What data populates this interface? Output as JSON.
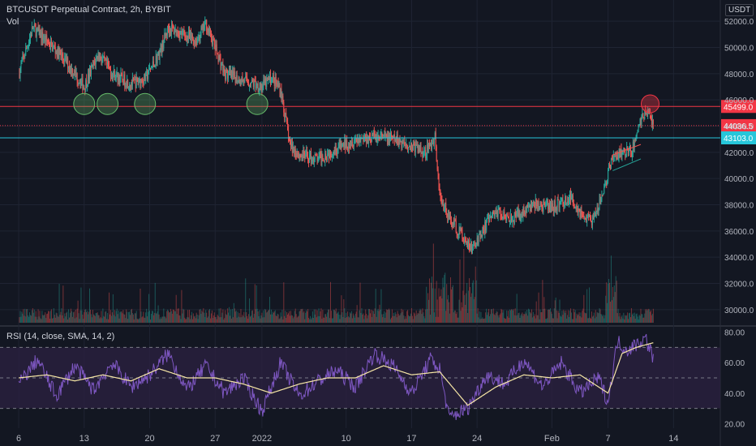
{
  "header": {
    "symbol_line": "BTCUSDT Perpetual Contract, 2h, BYBIT",
    "vol_label": "Vol",
    "currency": "USDT"
  },
  "rsi_legend": "RSI (14, close, SMA, 14, 2)",
  "price_labels": {
    "resistance": "45499.0",
    "last": "44036.5",
    "support": "43103.0"
  },
  "colors": {
    "background": "#131722",
    "up": "#26a69a",
    "down": "#ef5350",
    "resistance_line": "#f23645",
    "support_line": "#26c6da",
    "rsi_line": "#7e57c2",
    "rsi_sma": "#f7e7a6",
    "rsi_band": "#2a2140",
    "highlight_circle_green": "#66bb6a",
    "highlight_circle_red": "#f23645",
    "grid": "#1f2433"
  },
  "chart_data": [
    {
      "type": "candlestick",
      "title": "BTCUSDT Perpetual Contract, 2h, BYBIT",
      "y_axis": {
        "ticks": [
          30000,
          32000,
          34000,
          36000,
          38000,
          40000,
          42000,
          44000,
          46000,
          48000,
          50000,
          52000
        ],
        "tick_labels": [
          "30000.0",
          "32000.0",
          "34000.0",
          "36000.0",
          "38000.0",
          "40000.0",
          "42000.0",
          "44000.0",
          "46000.0",
          "48000.0",
          "50000.0",
          "52000.0"
        ],
        "range": [
          29000,
          53000
        ]
      },
      "x_axis": {
        "ticks": [
          "6",
          "13",
          "20",
          "27",
          "2022",
          "10",
          "17",
          "24",
          "Feb",
          "7",
          "14"
        ],
        "tick_days": [
          0,
          7,
          14,
          21,
          26,
          35,
          42,
          49,
          57,
          63,
          70
        ],
        "range_days": [
          -2,
          75
        ]
      },
      "horizontal_levels": [
        {
          "price": 45499.0,
          "label": "45499.0",
          "color": "#f23645"
        },
        {
          "price": 44036.5,
          "label": "44036.5",
          "color": "#f23645",
          "style": "dotted"
        },
        {
          "price": 43103.0,
          "label": "43103.0",
          "color": "#26c6da"
        }
      ],
      "price_path": [
        [
          0,
          48000
        ],
        [
          1.5,
          51500
        ],
        [
          3,
          50500
        ],
        [
          5,
          49000
        ],
        [
          7,
          47000
        ],
        [
          8.5,
          49500
        ],
        [
          10,
          48000
        ],
        [
          12,
          47200
        ],
        [
          13.5,
          47600
        ],
        [
          15,
          49500
        ],
        [
          16,
          51500
        ],
        [
          17.5,
          51000
        ],
        [
          19,
          50500
        ],
        [
          20,
          51800
        ],
        [
          21,
          50000
        ],
        [
          22,
          48000
        ],
        [
          24,
          47500
        ],
        [
          26,
          47000
        ],
        [
          27,
          47700
        ],
        [
          28,
          46800
        ],
        [
          29,
          42500
        ],
        [
          30,
          41800
        ],
        [
          32,
          41500
        ],
        [
          34,
          42300
        ],
        [
          36,
          43000
        ],
        [
          38,
          43200
        ],
        [
          40,
          43000
        ],
        [
          42,
          42500
        ],
        [
          43.5,
          42000
        ],
        [
          44.5,
          43200
        ],
        [
          45,
          38500
        ],
        [
          46.5,
          36500
        ],
        [
          47.5,
          35500
        ],
        [
          48.5,
          34500
        ],
        [
          49.5,
          36000
        ],
        [
          51,
          37500
        ],
        [
          53,
          37000
        ],
        [
          55,
          38000
        ],
        [
          57,
          37800
        ],
        [
          59,
          38500
        ],
        [
          60.5,
          37000
        ],
        [
          61.5,
          36800
        ],
        [
          62.5,
          39000
        ],
        [
          63.5,
          41500
        ],
        [
          64.5,
          42000
        ],
        [
          65.5,
          42000
        ],
        [
          66.5,
          44500
        ],
        [
          67.2,
          45200
        ],
        [
          67.8,
          44036
        ]
      ],
      "support_dates_highlighted": [
        7,
        9.5,
        13.5,
        25.5
      ],
      "highlighted_top": [
        67.5,
        45700
      ],
      "triangle_lines": [
        {
          "from": [
            63.5,
            41800
          ],
          "to": [
            66.5,
            42600
          ]
        },
        {
          "from": [
            63.5,
            40600
          ],
          "to": [
            66.5,
            41500
          ]
        }
      ]
    },
    {
      "type": "line",
      "title": "RSI (14, close, SMA, 14, 2)",
      "y_axis": {
        "ticks": [
          20,
          40,
          60,
          80
        ],
        "tick_labels": [
          "20.00",
          "40.00",
          "60.00",
          "80.00"
        ],
        "range": [
          17,
          83
        ]
      },
      "bands": {
        "upper": 70,
        "middle": 50,
        "lower": 30
      },
      "series": [
        {
          "color": "#7e57c2",
          "x": [
            0,
            2,
            4,
            6,
            8,
            10,
            12,
            14,
            16,
            18,
            20,
            22,
            24,
            26,
            28,
            30,
            32,
            34,
            36,
            38,
            40,
            42,
            44,
            45,
            46,
            48,
            50,
            52,
            54,
            56,
            58,
            60,
            62,
            63,
            64,
            65,
            66,
            67,
            67.8
          ],
          "values": [
            46,
            62,
            38,
            58,
            42,
            60,
            44,
            52,
            66,
            42,
            58,
            40,
            50,
            28,
            60,
            38,
            48,
            55,
            44,
            66,
            58,
            40,
            62,
            56,
            24,
            30,
            52,
            46,
            62,
            44,
            60,
            40,
            50,
            34,
            74,
            68,
            72,
            76,
            64
          ]
        },
        {
          "color": "#f7e7a6",
          "x": [
            0,
            3,
            6,
            9,
            12,
            15,
            18,
            21,
            24,
            27,
            30,
            33,
            36,
            39,
            42,
            45,
            48,
            51,
            54,
            57,
            60,
            63,
            64.5,
            66,
            67.8
          ],
          "values": [
            50,
            52,
            48,
            52,
            48,
            56,
            50,
            50,
            46,
            40,
            46,
            50,
            50,
            58,
            52,
            54,
            32,
            44,
            52,
            50,
            52,
            40,
            66,
            70,
            73
          ]
        }
      ]
    }
  ]
}
